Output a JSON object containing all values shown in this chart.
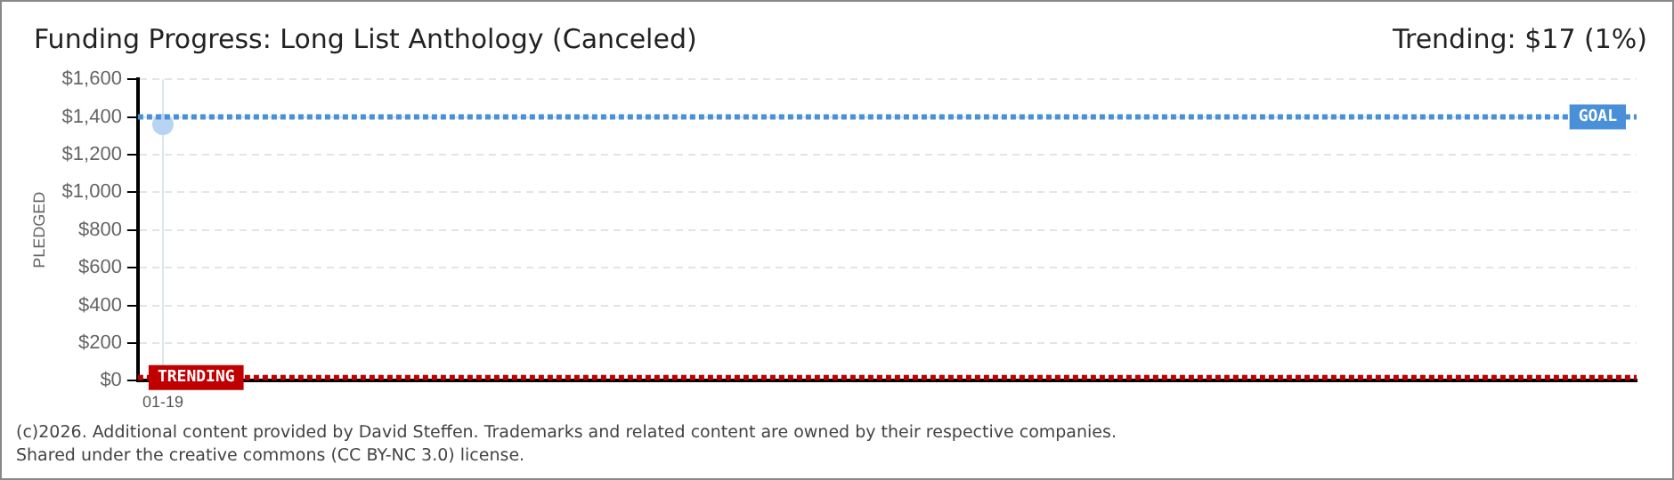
{
  "chart_data": {
    "type": "line",
    "title": "Funding Progress: Long List Anthology (Canceled)",
    "subtitle": "Trending: $17 (1%)",
    "ylabel": "PLEDGED",
    "categories": [
      "01-19",
      null,
      null,
      null,
      null,
      null,
      null,
      null,
      null,
      null,
      null,
      null,
      null,
      null,
      null,
      null,
      null,
      null,
      null,
      null,
      null,
      null,
      null,
      null,
      null,
      null,
      null,
      null,
      null,
      null
    ],
    "series": [
      {
        "color": "#b8d4f2",
        "values": [
          1360,
          null,
          null,
          null,
          null,
          null,
          null,
          null,
          null,
          null,
          null,
          null,
          null,
          null,
          null,
          null,
          null,
          null,
          null,
          null,
          null,
          null,
          null,
          null,
          null,
          null,
          null,
          null,
          null,
          null
        ]
      }
    ],
    "ylim": [
      0,
      1600
    ],
    "yticks": [
      {
        "value": 0,
        "label": "$0"
      },
      {
        "value": 200,
        "label": "$200"
      },
      {
        "value": 400,
        "label": "$400"
      },
      {
        "value": 600,
        "label": "$600"
      },
      {
        "value": 800,
        "label": "$800"
      },
      {
        "value": 1000,
        "label": "$1,000"
      },
      {
        "value": 1200,
        "label": "$1,200"
      },
      {
        "value": 1400,
        "label": "$1,400"
      },
      {
        "value": 1600,
        "label": "$1,600"
      }
    ],
    "ref_lines": [
      {
        "axis": "y",
        "value": 1400,
        "label": "GOAL",
        "color": "#4a90d9",
        "line_style": "dotted"
      },
      {
        "axis": "y",
        "value": 17,
        "label": "TRENDING",
        "color": "#c00000",
        "line_style": "dotted"
      }
    ],
    "grid": true,
    "legend": false,
    "marker": "circle",
    "annotations": [
      "(c)2026. Additional content provided by David Steffen. Trademarks and related content are owned by their respective companies.",
      "Shared under the creative commons (CC BY-NC 3.0) license."
    ]
  }
}
